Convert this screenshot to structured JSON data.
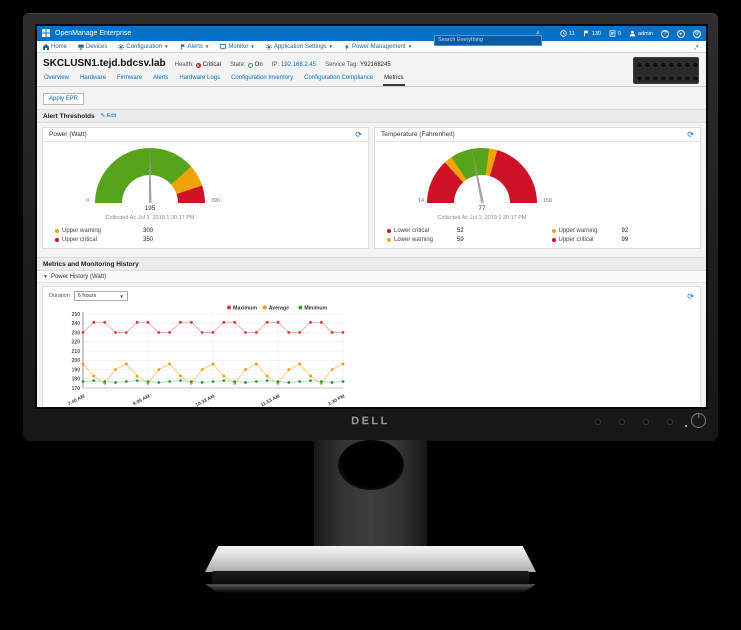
{
  "topbar": {
    "brand": "OpenManage Enterprise",
    "search_placeholder": "Search Everything",
    "alerts_count": "11",
    "warnings_count": "130",
    "jobs_count": "0",
    "user": "admin"
  },
  "menu": {
    "items": [
      {
        "label": "Home"
      },
      {
        "label": "Devices"
      },
      {
        "label": "Configuration"
      },
      {
        "label": "Alerts"
      },
      {
        "label": "Monitor"
      },
      {
        "label": "Application Settings"
      },
      {
        "label": "Power Management"
      }
    ]
  },
  "device": {
    "name": "SKCLUSN1.tejd.bdcsv.lab",
    "health_label": "Health:",
    "health": "Critical",
    "state_label": "State:",
    "state": "On",
    "ip_label": "IP:",
    "ip": "192.168.2.45",
    "service_tag_label": "Service Tag:",
    "service_tag": "Y92168245"
  },
  "tabs": [
    "Overview",
    "Hardware",
    "Firmware",
    "Alerts",
    "Hardware Logs",
    "Configuration Inventory",
    "Configuration Compliance",
    "Metrics"
  ],
  "active_tab": "Metrics",
  "apply_epr_label": "Apply EPR",
  "alert_thresholds": {
    "title": "Alert Thresholds",
    "edit_label": "Edit"
  },
  "gauges": {
    "power": {
      "title": "Power (Watt)",
      "min": 0,
      "max": 390,
      "value": 195,
      "collected_label": "Collected At:",
      "collected_value": "Jul 1, 2019 1:30:17 PM",
      "segments": [
        {
          "from": 0,
          "to": 300,
          "color": "#57a41b"
        },
        {
          "from": 300,
          "to": 350,
          "color": "#f0a30a"
        },
        {
          "from": 350,
          "to": 390,
          "color": "#ce1126"
        }
      ],
      "thresholds": [
        {
          "label": "Upper warning",
          "value": 300,
          "color": "#f0a30a"
        },
        {
          "label": "Upper critical",
          "value": 350,
          "color": "#ce1126"
        }
      ]
    },
    "temperature": {
      "title": "Temperature (Fahrenheit)",
      "min": 14,
      "max": 158,
      "value": 77,
      "collected_label": "Collected At:",
      "collected_value": "Jul 1, 2019 1:30:17 PM",
      "segments": [
        {
          "from": 14,
          "to": 52,
          "color": "#ce1126"
        },
        {
          "from": 52,
          "to": 59,
          "color": "#f0a30a"
        },
        {
          "from": 59,
          "to": 92,
          "color": "#57a41b"
        },
        {
          "from": 92,
          "to": 99,
          "color": "#f0a30a"
        },
        {
          "from": 99,
          "to": 158,
          "color": "#ce1126"
        }
      ],
      "thresholds": [
        {
          "label": "Lower critical",
          "value": 52,
          "color": "#ce1126"
        },
        {
          "label": "Upper warning",
          "value": 92,
          "color": "#f0a30a"
        },
        {
          "label": "Lower warning",
          "value": 59,
          "color": "#f0a30a"
        },
        {
          "label": "Upper critical",
          "value": 99,
          "color": "#ce1126"
        }
      ]
    }
  },
  "metrics_history": {
    "title": "Metrics and Monitoring History",
    "subsection": "Power History (Watt)",
    "duration_label": "Duration",
    "duration_value": "6 hours"
  },
  "chart_data": {
    "type": "line",
    "title": "Power History (Watt)",
    "x_tick_labels": [
      "7:40 AM",
      "9:06 AM",
      "10:33 AM",
      "11:53 AM",
      "1:30 PM"
    ],
    "x_tick_positions": [
      0,
      6,
      12,
      18,
      24
    ],
    "ylim": [
      170,
      250
    ],
    "y_ticks": [
      170,
      180,
      190,
      200,
      210,
      220,
      230,
      240,
      250
    ],
    "grid": true,
    "legend_position": "top-right",
    "series": [
      {
        "name": "Maximum",
        "color": "#d9363e",
        "line_color": "#efabab",
        "values": [
          230,
          241,
          241,
          230,
          230,
          241,
          241,
          230,
          230,
          241,
          241,
          230,
          230,
          241,
          241,
          230,
          230,
          241,
          241,
          230,
          230,
          241,
          241,
          230,
          230
        ]
      },
      {
        "name": "Average",
        "color": "#ef9b0f",
        "line_color": "#f6c984",
        "values": [
          196,
          183,
          175,
          190,
          196,
          183,
          175,
          190,
          196,
          183,
          175,
          190,
          196,
          183,
          175,
          190,
          196,
          183,
          175,
          190,
          196,
          183,
          175,
          190,
          196
        ]
      },
      {
        "name": "Minimum",
        "color": "#2f9e44",
        "line_color": "#a5d9ab",
        "values": [
          177,
          178,
          177,
          176,
          177,
          178,
          177,
          176,
          177,
          178,
          177,
          176,
          177,
          178,
          177,
          176,
          177,
          178,
          177,
          176,
          177,
          178,
          177,
          176,
          177
        ]
      }
    ]
  },
  "monitor": {
    "brand": "DELL"
  }
}
